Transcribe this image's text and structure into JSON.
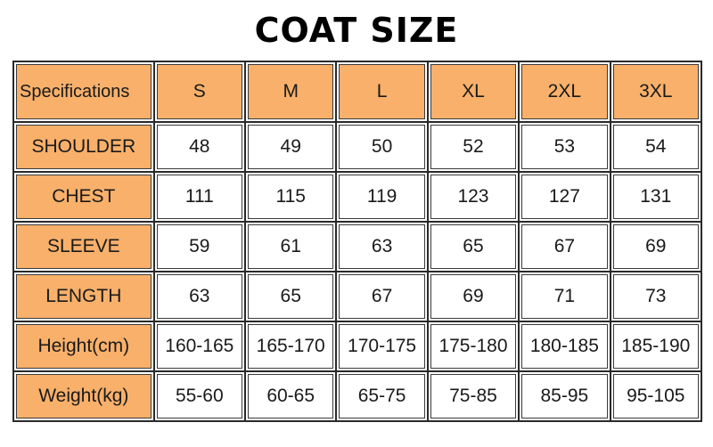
{
  "title": "COAT SIZE",
  "colors": {
    "header_fill": "#f8b06a",
    "cell_fill": "#ffffff",
    "border": "#2a2a2a"
  },
  "table": {
    "corner_label": "Specifications",
    "sizes": [
      "S",
      "M",
      "L",
      "XL",
      "2XL",
      "3XL"
    ],
    "rows": [
      {
        "label": "SHOULDER",
        "values": [
          "48",
          "49",
          "50",
          "52",
          "53",
          "54"
        ]
      },
      {
        "label": "CHEST",
        "values": [
          "111",
          "115",
          "119",
          "123",
          "127",
          "131"
        ]
      },
      {
        "label": "SLEEVE",
        "values": [
          "59",
          "61",
          "63",
          "65",
          "67",
          "69"
        ]
      },
      {
        "label": "LENGTH",
        "values": [
          "63",
          "65",
          "67",
          "69",
          "71",
          "73"
        ]
      },
      {
        "label": "Height(cm)",
        "values": [
          "160-165",
          "165-170",
          "170-175",
          "175-180",
          "180-185",
          "185-190"
        ]
      },
      {
        "label": "Weight(kg)",
        "values": [
          "55-60",
          "60-65",
          "65-75",
          "75-85",
          "85-95",
          "95-105"
        ]
      }
    ]
  }
}
